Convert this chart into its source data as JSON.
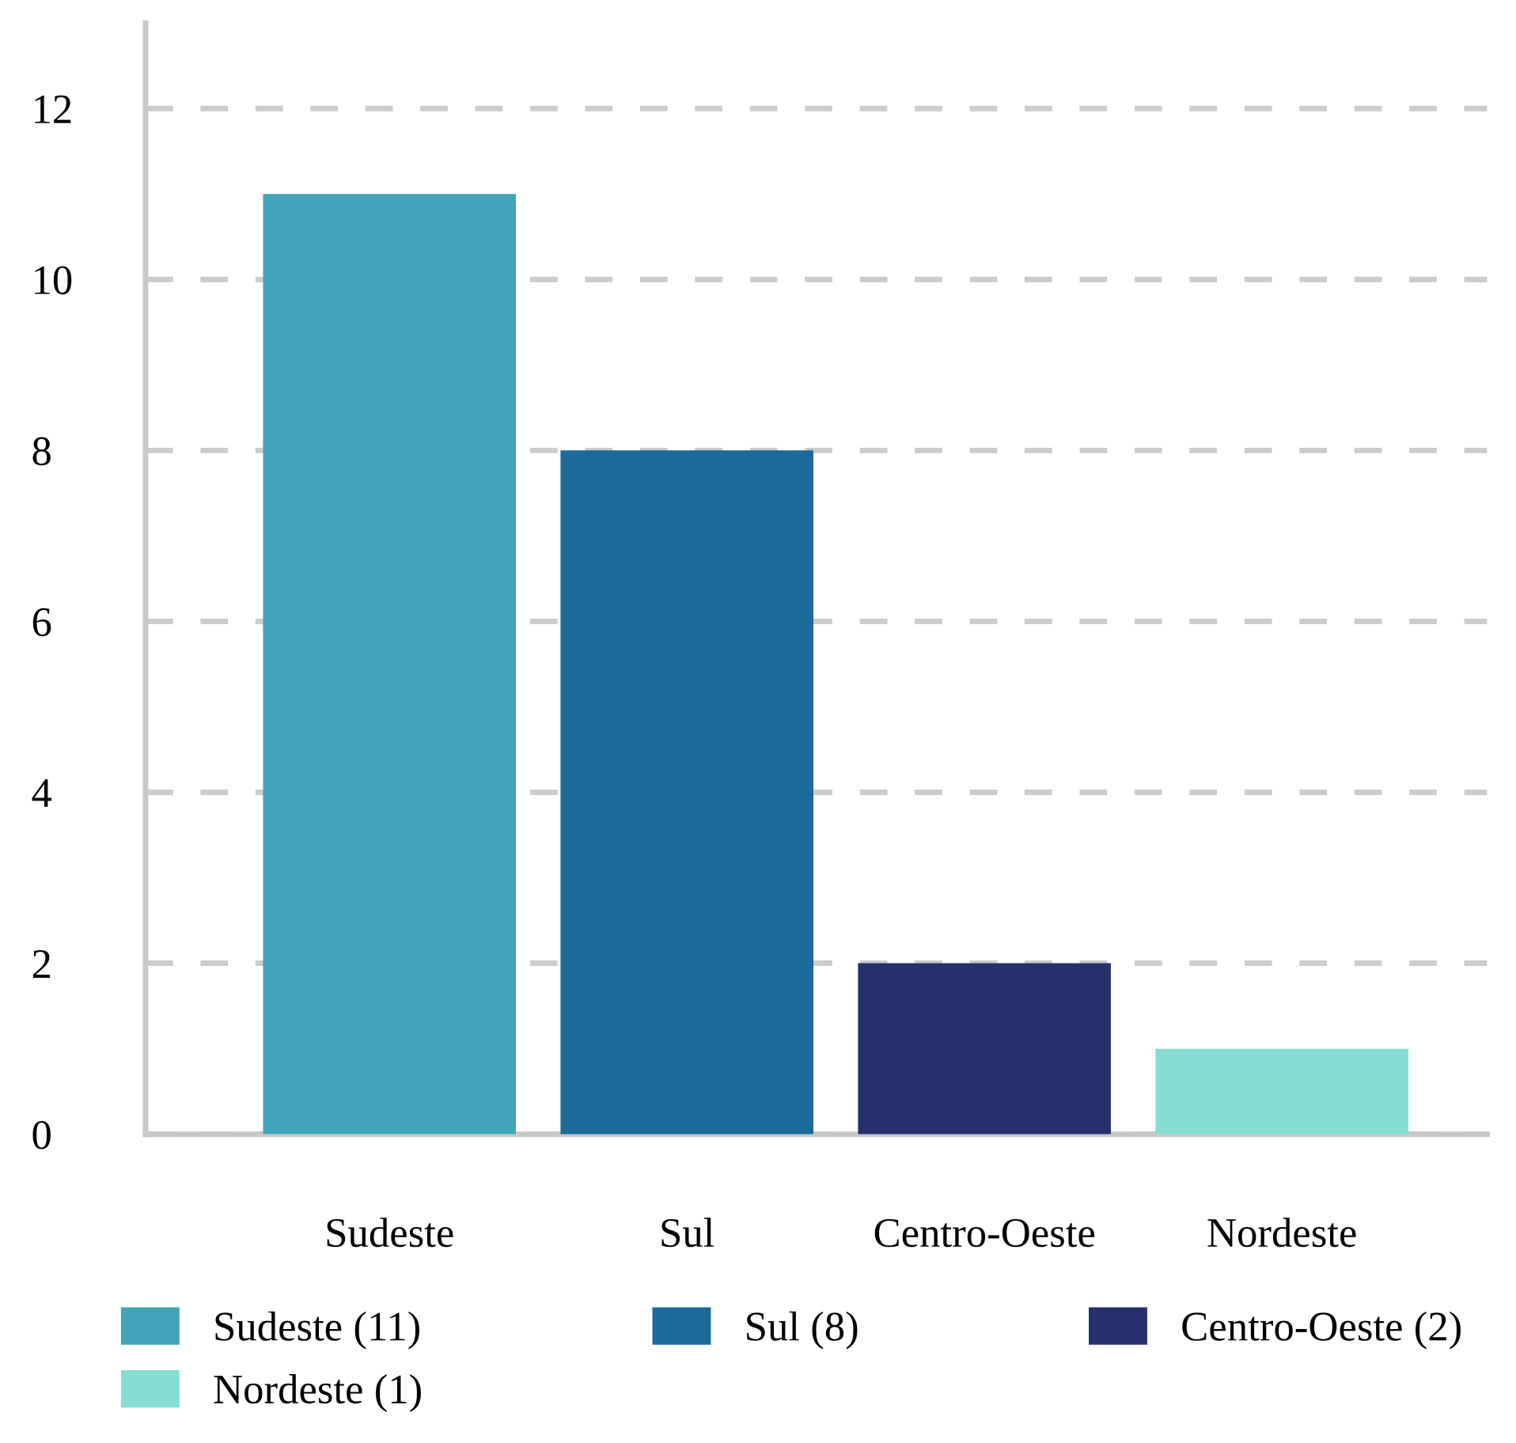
{
  "chart_data": {
    "type": "bar",
    "categories": [
      "Sudeste",
      "Sul",
      "Centro-Oeste",
      "Nordeste"
    ],
    "series": [
      {
        "name": "Sudeste (11)",
        "color": "#41a4b9",
        "values": [
          11,
          null,
          null,
          null
        ]
      },
      {
        "name": "Sul (8)",
        "color": "#1b6a99",
        "values": [
          null,
          8,
          null,
          null
        ]
      },
      {
        "name": "Centro-Oeste (2)",
        "color": "#24316d",
        "values": [
          null,
          null,
          2,
          null
        ]
      },
      {
        "name": "Nordeste (1)",
        "color": "#86dcd2",
        "values": [
          null,
          null,
          null,
          1
        ]
      }
    ],
    "ylim": [
      0,
      13
    ],
    "yticks": [
      0,
      2,
      4,
      6,
      8,
      10,
      12
    ],
    "grid": "y",
    "legend": "bottom"
  }
}
